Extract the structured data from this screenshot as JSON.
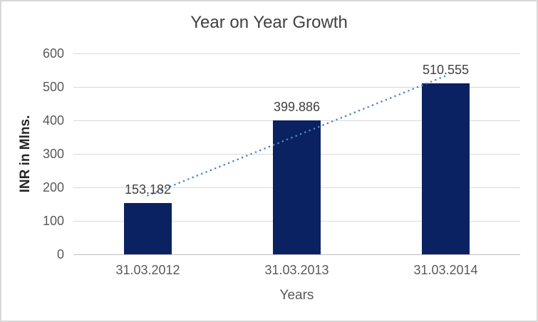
{
  "chart_data": {
    "type": "bar",
    "title": "Year on Year Growth",
    "xlabel": "Years",
    "ylabel": "INR in Mlns.",
    "categories": [
      "31.03.2012",
      "31.03.2013",
      "31.03.2014"
    ],
    "values": [
      153.182,
      399.886,
      510.555
    ],
    "data_labels": [
      "153.182",
      "399.886",
      "510.555"
    ],
    "ylim": [
      0,
      600
    ],
    "yticks": [
      0,
      100,
      200,
      300,
      400,
      500,
      600
    ],
    "grid": true,
    "legend": "none",
    "bar_color": "#0a2262",
    "trendline": {
      "type": "linear",
      "style": "dotted",
      "color": "#4e86c8",
      "start_value": 175.9,
      "end_value": 533.2
    },
    "colors": {
      "gridline": "#d9d9d9",
      "axis_line": "#bfbfbf",
      "tick_label": "#595959",
      "title": "#404040",
      "data_label": "#404040",
      "border": "#d8d8d8",
      "background": "#ffffff"
    }
  }
}
